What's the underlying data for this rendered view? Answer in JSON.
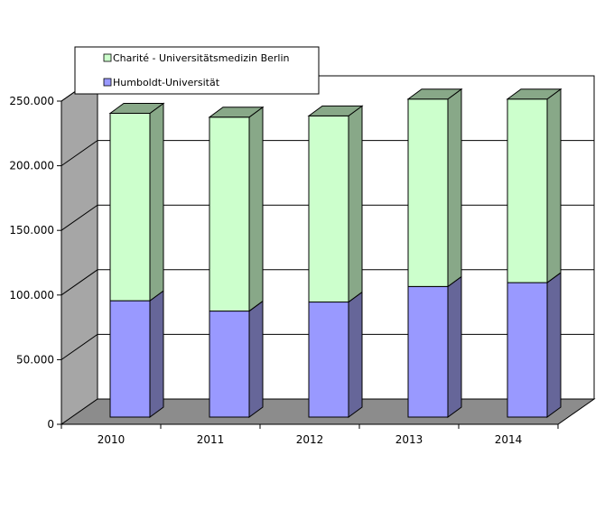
{
  "chart_data": {
    "type": "bar",
    "stacked": true,
    "three_d": true,
    "categories": [
      "2010",
      "2011",
      "2012",
      "2013",
      "2014"
    ],
    "series": [
      {
        "name": "Humboldt-Universität",
        "values": [
          90000,
          82000,
          89000,
          101000,
          104000
        ],
        "color": "#9999ff",
        "side_color": "#666699"
      },
      {
        "name": "Charité - Universitätsmedizin Berlin",
        "values": [
          145000,
          150000,
          144000,
          145000,
          142000
        ],
        "color": "#ccffcc",
        "side_color": "#88a888"
      }
    ],
    "y_ticks": [
      "0",
      "50.000",
      "100.000",
      "150.000",
      "200.000",
      "250.000"
    ],
    "ylim": [
      0,
      250000
    ],
    "grid": true,
    "legend_position": "top-left",
    "colors": {
      "back_wall": "#ffffff",
      "left_wall": "#a6a6a6",
      "floor": "#8c8c8c",
      "grid": "#000000"
    }
  }
}
